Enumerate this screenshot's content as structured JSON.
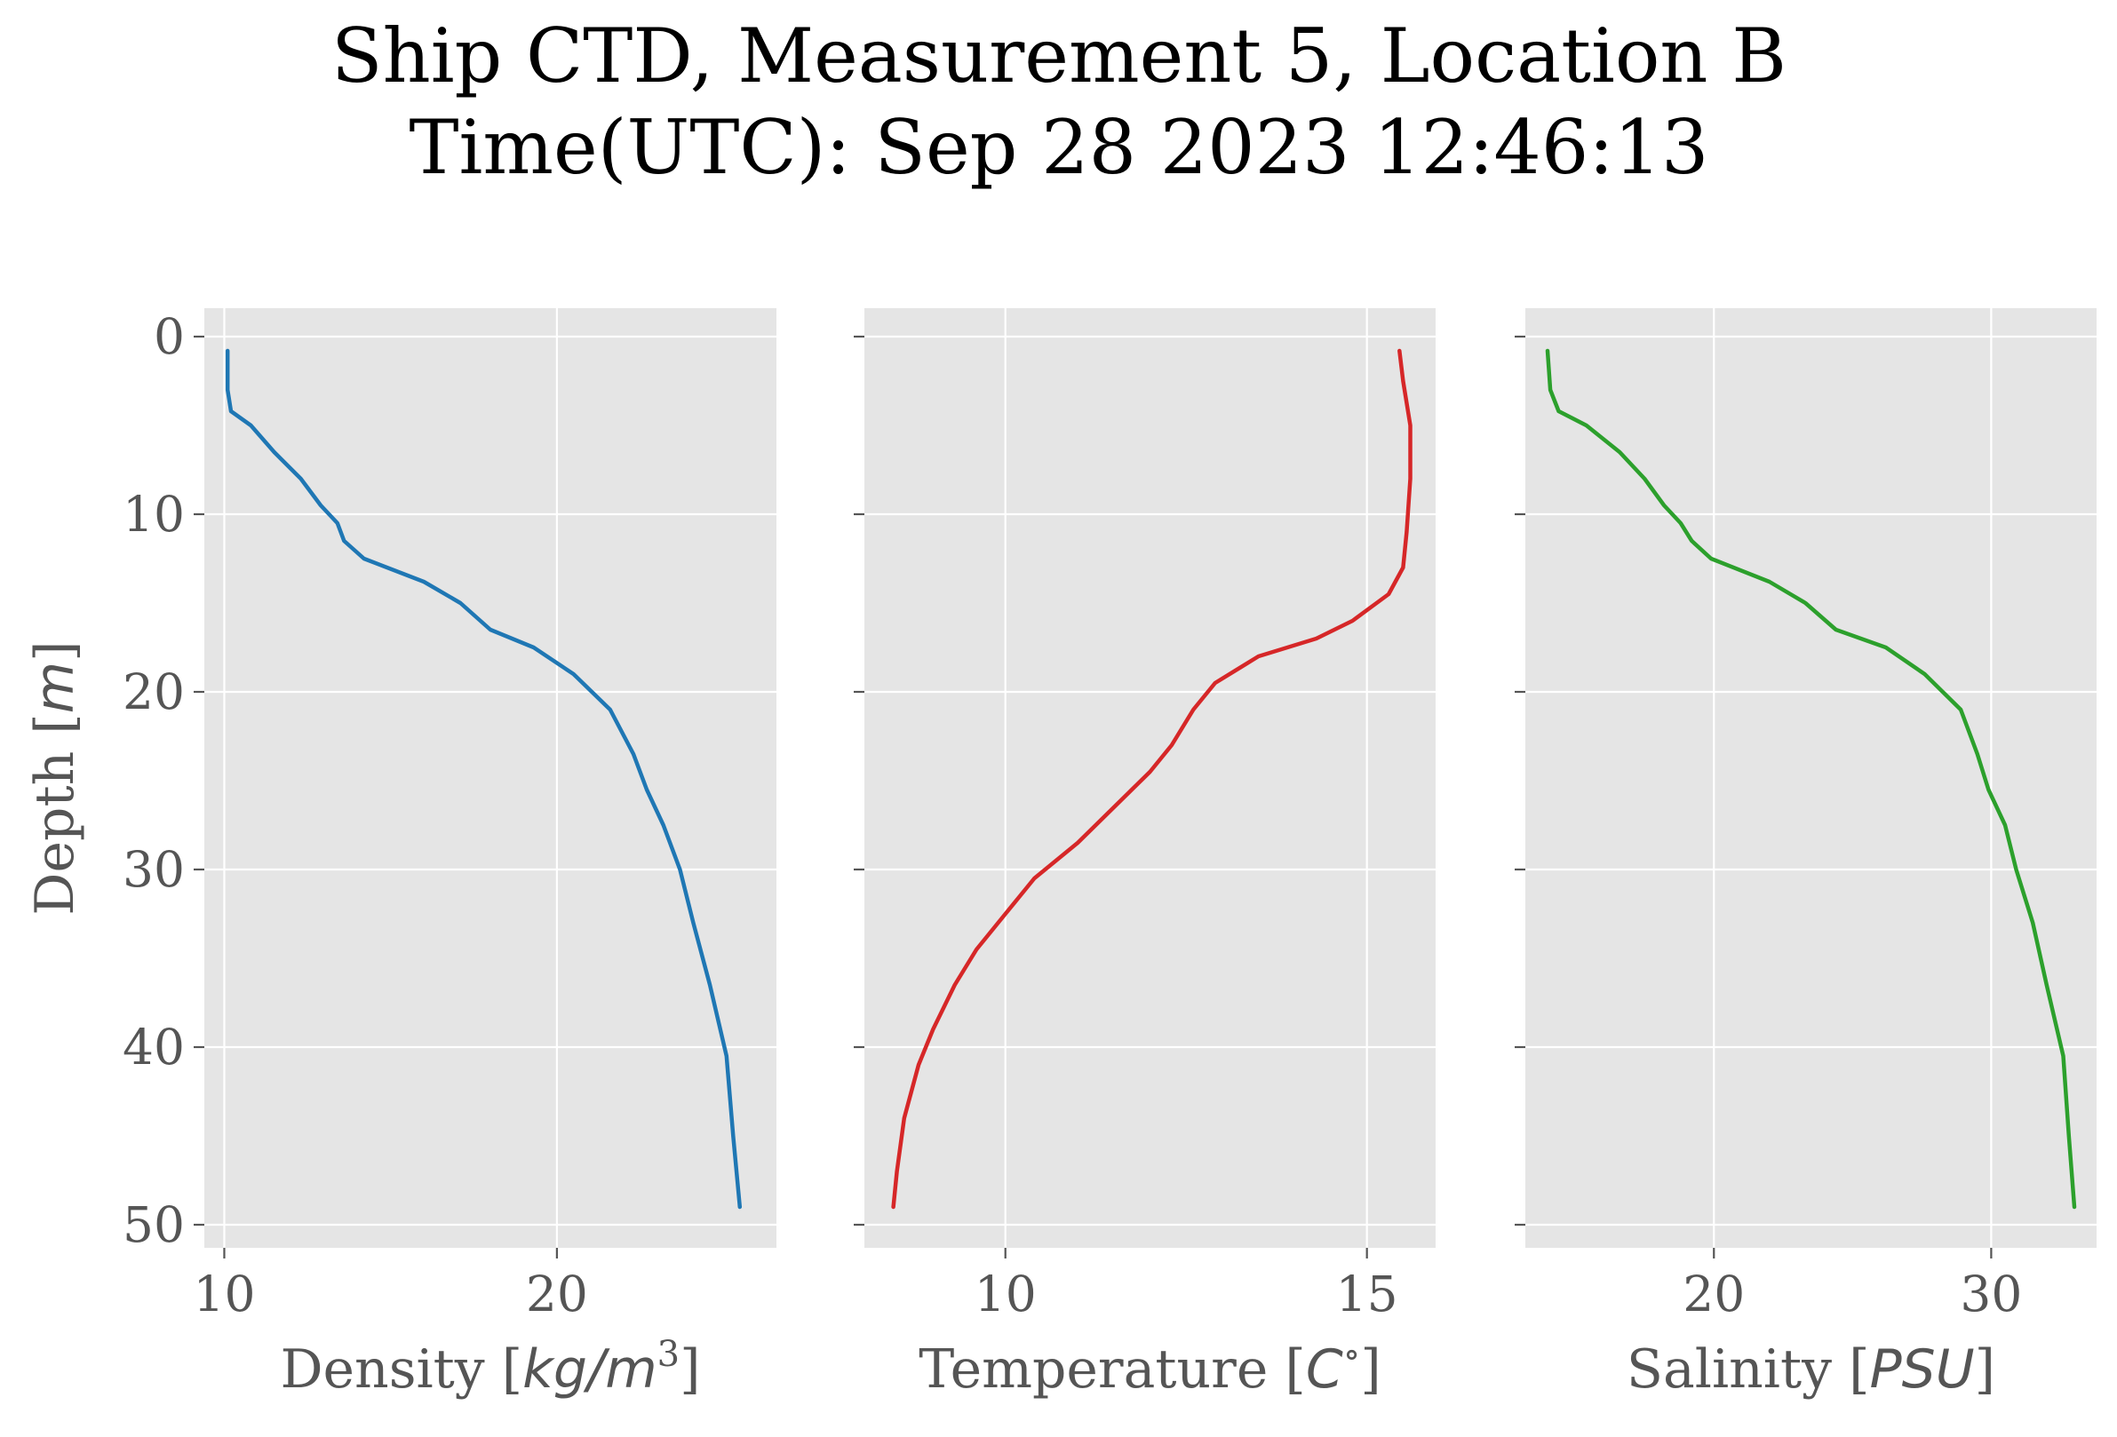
{
  "figure": {
    "title_line1": "Ship CTD, Measurement 5, Location B",
    "title_line2": "Time(UTC): Sep 28 2023 12:46:13",
    "background": "#ffffff",
    "axes_facecolor": "#e5e5e5",
    "grid_color": "#ffffff",
    "tick_color": "#555555"
  },
  "chart_data": [
    {
      "type": "line",
      "title": "",
      "xlabel": "Density [kg/m³]",
      "xlabel_parts": {
        "pre": "Density [",
        "italic": "kg/m",
        "sup": "3",
        "post": "]"
      },
      "ylabel": "Depth [m]",
      "ylabel_parts": {
        "pre": "Depth [",
        "italic": "m",
        "post": "]"
      },
      "xlim": [
        9.4,
        26.6
      ],
      "ylim": [
        51.3,
        -1.6
      ],
      "y_inverted": true,
      "xticks": [
        10,
        20
      ],
      "yticks": [
        0,
        10,
        20,
        30,
        40,
        50
      ],
      "grid": true,
      "series": [
        {
          "color": "#1f77b4",
          "x": [
            10.1,
            10.1,
            10.2,
            10.8,
            11.5,
            12.3,
            12.9,
            13.4,
            13.6,
            14.2,
            16.0,
            17.1,
            18.0,
            19.3,
            20.5,
            21.6,
            22.3,
            22.7,
            23.2,
            23.7,
            24.1,
            24.6,
            25.1,
            25.3,
            25.5
          ],
          "y": [
            0.8,
            3.0,
            4.2,
            5.0,
            6.5,
            8.0,
            9.5,
            10.5,
            11.5,
            12.5,
            13.8,
            15.0,
            16.5,
            17.5,
            19.0,
            21.0,
            23.5,
            25.5,
            27.5,
            30.0,
            33.0,
            36.5,
            40.5,
            45.0,
            49.0
          ]
        }
      ]
    },
    {
      "type": "line",
      "title": "",
      "xlabel": "Temperature [C°]",
      "xlabel_parts": {
        "pre": "Temperature [",
        "italic": "C",
        "sup": "∘",
        "post": "]"
      },
      "ylabel": "",
      "xlim": [
        8.05,
        15.95
      ],
      "ylim": [
        51.3,
        -1.6
      ],
      "y_inverted": true,
      "xticks": [
        10,
        15
      ],
      "yticks": [
        0,
        10,
        20,
        30,
        40,
        50
      ],
      "grid": true,
      "series": [
        {
          "color": "#d62728",
          "x": [
            15.45,
            15.5,
            15.6,
            15.6,
            15.55,
            15.5,
            15.3,
            14.8,
            14.3,
            13.5,
            12.9,
            12.6,
            12.3,
            12.0,
            11.5,
            11.0,
            10.4,
            10.0,
            9.6,
            9.3,
            9.0,
            8.8,
            8.6,
            8.5,
            8.45
          ],
          "y": [
            0.8,
            2.5,
            5.0,
            8.0,
            11.0,
            13.0,
            14.5,
            16.0,
            17.0,
            18.0,
            19.5,
            21.0,
            23.0,
            24.5,
            26.5,
            28.5,
            30.5,
            32.5,
            34.5,
            36.5,
            39.0,
            41.0,
            44.0,
            47.0,
            49.0
          ]
        }
      ]
    },
    {
      "type": "line",
      "title": "",
      "xlabel": "Salinity [PSU]",
      "xlabel_parts": {
        "pre": "Salinity [",
        "italic": "PSU",
        "sup": "",
        "post": "]"
      },
      "ylabel": "",
      "xlim": [
        13.2,
        33.8
      ],
      "ylim": [
        51.3,
        -1.6
      ],
      "y_inverted": true,
      "xticks": [
        20,
        30
      ],
      "yticks": [
        0,
        10,
        20,
        30,
        40,
        50
      ],
      "grid": true,
      "series": [
        {
          "color": "#2ca02c",
          "x": [
            14.0,
            14.1,
            14.4,
            15.4,
            16.6,
            17.5,
            18.2,
            18.8,
            19.2,
            19.9,
            22.0,
            23.3,
            24.4,
            26.2,
            27.6,
            28.9,
            29.5,
            29.9,
            30.5,
            30.9,
            31.5,
            32.0,
            32.6,
            32.8,
            33.0
          ],
          "y": [
            0.8,
            3.0,
            4.2,
            5.0,
            6.5,
            8.0,
            9.5,
            10.5,
            11.5,
            12.5,
            13.8,
            15.0,
            16.5,
            17.5,
            19.0,
            21.0,
            23.5,
            25.5,
            27.5,
            30.0,
            33.0,
            36.5,
            40.5,
            45.0,
            49.0
          ]
        }
      ]
    }
  ]
}
